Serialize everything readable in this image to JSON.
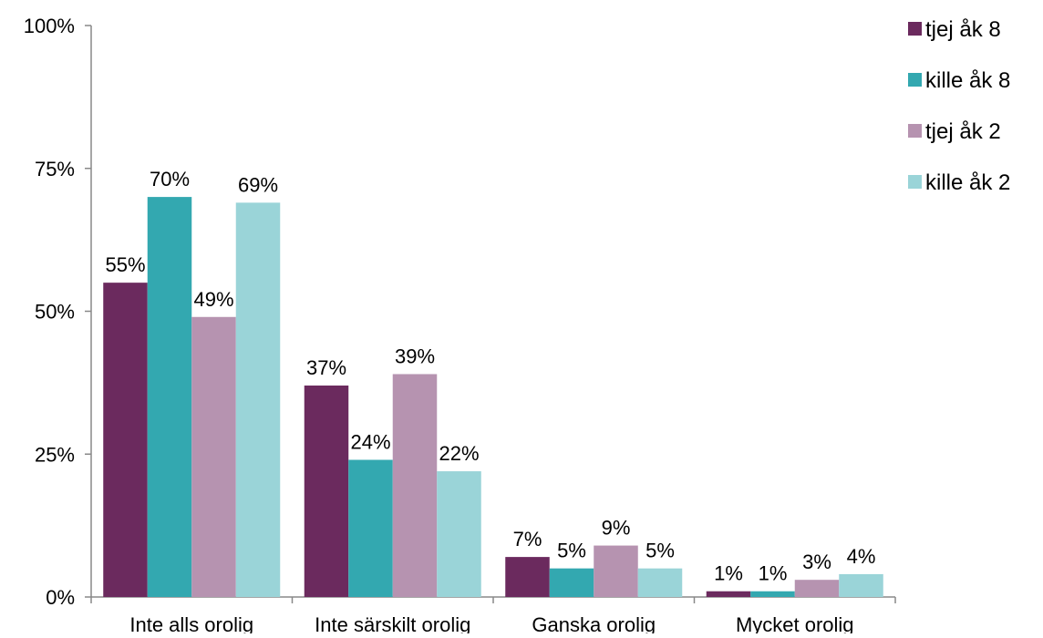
{
  "chart_data": {
    "type": "bar",
    "title": "",
    "xlabel": "",
    "ylabel": "",
    "categories": [
      "Inte alls orolig",
      "Inte särskilt orolig",
      "Ganska orolig",
      "Mycket orolig"
    ],
    "ylim": [
      0,
      100
    ],
    "yticks": [
      0,
      25,
      50,
      75,
      100
    ],
    "ytick_labels": [
      "0%",
      "25%",
      "50%",
      "75%",
      "100%"
    ],
    "grid": false,
    "legend_position": "top-right",
    "series": [
      {
        "name": "tjej åk 8",
        "color": "#6B2A5E",
        "values": [
          55,
          37,
          7,
          1
        ],
        "labels": [
          "55%",
          "37%",
          "7%",
          "1%"
        ]
      },
      {
        "name": "kille åk 8",
        "color": "#33A8B0",
        "values": [
          70,
          24,
          5,
          1
        ],
        "labels": [
          "70%",
          "24%",
          "5%",
          "1%"
        ]
      },
      {
        "name": "tjej åk 2",
        "color": "#B693B0",
        "values": [
          49,
          39,
          9,
          3
        ],
        "labels": [
          "49%",
          "39%",
          "9%",
          "3%"
        ]
      },
      {
        "name": "kille åk 2",
        "color": "#9AD4D8",
        "values": [
          69,
          22,
          5,
          4
        ],
        "labels": [
          "69%",
          "22%",
          "5%",
          "4%"
        ]
      }
    ]
  }
}
